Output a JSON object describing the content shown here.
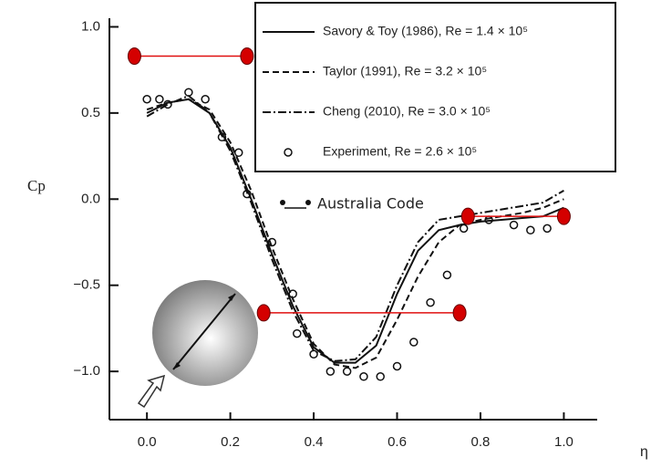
{
  "chart_data": {
    "type": "line",
    "x_label": "η",
    "y_label": "Cp",
    "xlim": [
      -0.09,
      1.08
    ],
    "ylim": [
      -1.28,
      1.05
    ],
    "xticks": [
      {
        "value": 0,
        "label": "0.0"
      },
      0.2,
      0.4,
      0.6,
      0.8,
      {
        "value": 1,
        "label": "1.0"
      }
    ],
    "yticks": [
      {
        "value": 1,
        "label": "1.0"
      },
      0.5,
      {
        "value": 0,
        "label": "0.0"
      },
      {
        "value": -0.5,
        "label": "−0.5"
      },
      {
        "value": -1,
        "label": "−1.0"
      }
    ],
    "series": [
      {
        "name": "Savory & Toy (1986), Re = 1.4 × 10⁵",
        "color": "#111",
        "line_style": "solid",
        "x": [
          0,
          0.05,
          0.1,
          0.15,
          0.2,
          0.25,
          0.3,
          0.35,
          0.4,
          0.45,
          0.5,
          0.55,
          0.6,
          0.65,
          0.7,
          0.75,
          0.8,
          0.85,
          0.9,
          0.95,
          1.0
        ],
        "values": [
          0.5,
          0.56,
          0.58,
          0.5,
          0.3,
          0.0,
          -0.32,
          -0.62,
          -0.86,
          -0.95,
          -0.95,
          -0.85,
          -0.55,
          -0.3,
          -0.18,
          -0.15,
          -0.13,
          -0.12,
          -0.11,
          -0.1,
          -0.05
        ]
      },
      {
        "name": "Taylor (1991), Re = 3.2 × 10⁵",
        "color": "#111",
        "line_style": "dashed",
        "x": [
          0,
          0.05,
          0.1,
          0.15,
          0.2,
          0.25,
          0.3,
          0.35,
          0.4,
          0.45,
          0.5,
          0.55,
          0.6,
          0.65,
          0.7,
          0.75,
          0.8,
          0.85,
          0.9,
          0.95,
          1.0
        ],
        "values": [
          0.52,
          0.56,
          0.58,
          0.52,
          0.33,
          0.05,
          -0.28,
          -0.58,
          -0.84,
          -0.96,
          -0.98,
          -0.92,
          -0.7,
          -0.45,
          -0.25,
          -0.15,
          -0.12,
          -0.1,
          -0.08,
          -0.05,
          0.0
        ]
      },
      {
        "name": "Cheng (2010), Re = 3.0 × 10⁵",
        "color": "#111",
        "line_style": "dashdot",
        "x": [
          0,
          0.05,
          0.1,
          0.15,
          0.2,
          0.25,
          0.3,
          0.35,
          0.4,
          0.45,
          0.5,
          0.55,
          0.6,
          0.65,
          0.7,
          0.75,
          0.8,
          0.85,
          0.9,
          0.95,
          1.0
        ],
        "values": [
          0.48,
          0.55,
          0.6,
          0.5,
          0.28,
          -0.02,
          -0.35,
          -0.65,
          -0.88,
          -0.94,
          -0.93,
          -0.8,
          -0.5,
          -0.25,
          -0.12,
          -0.1,
          -0.08,
          -0.06,
          -0.04,
          -0.02,
          0.05
        ]
      },
      {
        "name": "Experiment, Re = 2.6 × 10⁵",
        "color": "#111",
        "line_style": "markers",
        "x": [
          0,
          0.03,
          0.05,
          0.1,
          0.14,
          0.18,
          0.22,
          0.24,
          0.3,
          0.35,
          0.36,
          0.4,
          0.44,
          0.48,
          0.52,
          0.56,
          0.6,
          0.64,
          0.68,
          0.72,
          0.76,
          0.82,
          0.88,
          0.92,
          0.96
        ],
        "values": [
          0.58,
          0.58,
          0.55,
          0.62,
          0.58,
          0.36,
          0.27,
          0.03,
          -0.25,
          -0.55,
          -0.78,
          -0.9,
          -1.0,
          -1.0,
          -1.03,
          -1.03,
          -0.97,
          -0.83,
          -0.6,
          -0.44,
          -0.17,
          -0.12,
          -0.15,
          -0.18,
          -0.17
        ]
      },
      {
        "name": "Australia Code",
        "color": "#e01010",
        "line_style": "segments",
        "x": [
          -0.03,
          0.24,
          null,
          0.28,
          0.75,
          null,
          0.77,
          1.0
        ],
        "values": [
          0.83,
          0.83,
          null,
          -0.66,
          -0.66,
          null,
          -0.1,
          -0.1
        ]
      }
    ]
  }
}
